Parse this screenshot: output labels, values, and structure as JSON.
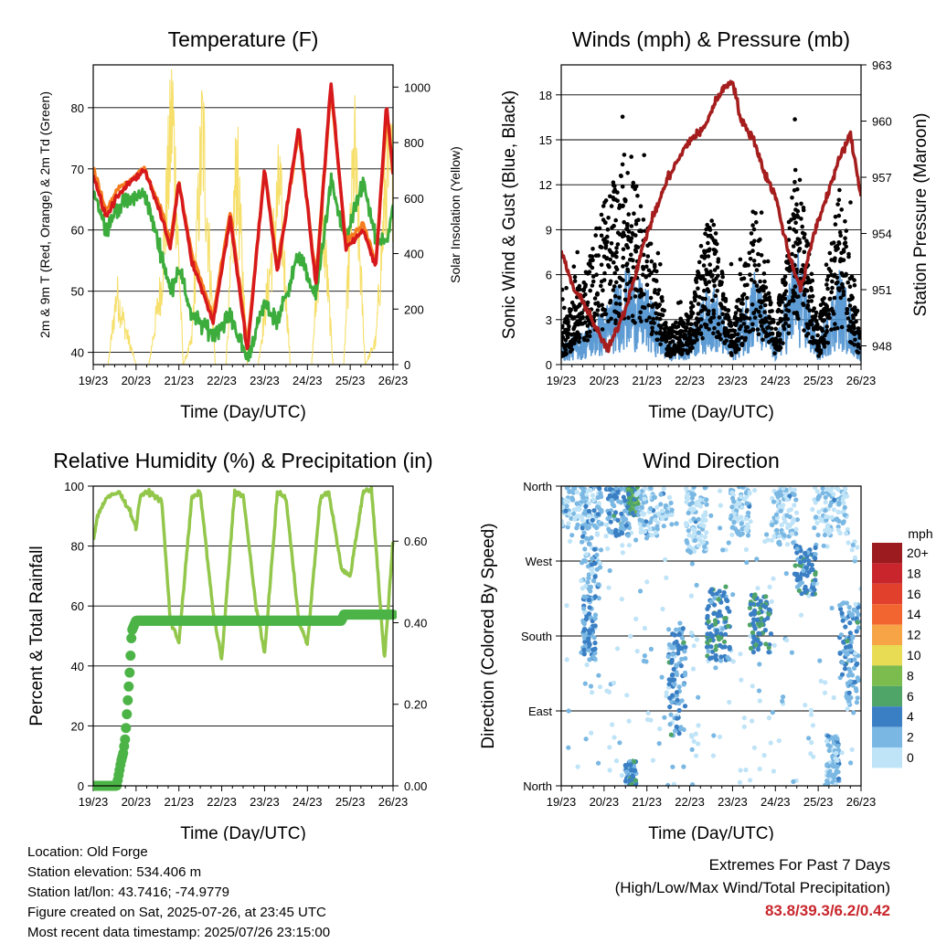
{
  "time_ticks": [
    "19/23",
    "20/23",
    "21/23",
    "22/23",
    "23/23",
    "24/23",
    "25/23",
    "26/23"
  ],
  "colors": {
    "temp2m": "#d7191c",
    "temp9m": "#f57c1f",
    "dew": "#3cac3c",
    "solar": "#f5dc5a",
    "wind": "#4a90cf",
    "gust": "#000000",
    "pressure": "#a51d1d",
    "rh": "#93c74b",
    "precip": "#4cb447"
  },
  "chart_data": [
    {
      "id": "temperature",
      "type": "line",
      "title": "Temperature (F)",
      "xlabel": "Time (Day/UTC)",
      "ylabel": "2m & 9m T (Red, Orange) & 2m Td (Green)",
      "ylabel_right": "Solar Insolation (Yellow)",
      "ylim": [
        38,
        87
      ],
      "yticks": [
        40,
        50,
        60,
        70,
        80
      ],
      "ylim_right": [
        0,
        1080
      ],
      "yticks_right": [
        0,
        200,
        400,
        600,
        800,
        1000
      ],
      "series": [
        {
          "key": "temp2m",
          "x": [
            0,
            0.3,
            0.6,
            1.2,
            1.6,
            1.8,
            2.0,
            2.3,
            2.8,
            3.2,
            3.6,
            4.0,
            4.3,
            4.8,
            5.2,
            5.55,
            5.9,
            6.3,
            6.6,
            6.85,
            7.0
          ],
          "y": [
            69,
            62,
            66,
            70,
            62,
            57,
            68,
            55,
            45,
            62,
            40,
            70,
            53,
            77,
            51,
            84,
            57,
            60,
            54,
            81,
            69
          ]
        },
        {
          "key": "temp9m",
          "x": [
            0,
            0.3,
            0.6,
            1.2,
            1.6,
            1.8,
            2.0,
            2.3,
            2.8,
            3.2,
            3.6,
            4.0,
            4.3,
            4.8,
            5.2,
            5.55,
            5.9,
            6.3,
            6.6,
            6.85,
            7.0
          ],
          "y": [
            70,
            63,
            67,
            70,
            63,
            58,
            68,
            56,
            46,
            63,
            41,
            70,
            54,
            76,
            52,
            83,
            58,
            61,
            55,
            79,
            70
          ]
        },
        {
          "key": "dew",
          "x": [
            0,
            0.3,
            0.6,
            1.2,
            1.6,
            1.8,
            2.0,
            2.3,
            2.8,
            3.2,
            3.6,
            4.0,
            4.3,
            4.8,
            5.2,
            5.55,
            5.9,
            6.3,
            6.6,
            6.85,
            7.0
          ],
          "y": [
            67,
            60,
            64,
            66,
            56,
            50,
            54,
            46,
            43,
            46,
            39,
            48,
            45,
            56,
            49,
            68,
            58,
            68,
            58,
            58,
            64
          ]
        },
        {
          "key": "solar",
          "x": [
            0.2,
            0.35,
            0.55,
            0.75,
            1.0,
            1.3,
            1.6,
            1.85,
            2.1,
            2.3,
            2.55,
            2.85,
            3.1,
            3.35,
            3.6,
            3.85,
            4.1,
            4.35,
            4.6,
            4.85,
            5.1,
            5.35,
            5.6,
            5.85,
            6.1,
            6.35,
            6.6,
            6.85
          ],
          "y": [
            0,
            0,
            300,
            150,
            0,
            0,
            350,
            1080,
            0,
            100,
            1000,
            0,
            0,
            850,
            0,
            0,
            350,
            750,
            0,
            0,
            0,
            650,
            0,
            0,
            900,
            0,
            100,
            800
          ]
        }
      ]
    },
    {
      "id": "winds",
      "type": "scatter",
      "title": "Winds (mph) & Pressure (mb)",
      "xlabel": "Time (Day/UTC)",
      "ylabel": "Sonic Wind & Gust (Blue, Black)",
      "ylabel_right": "Station Pressure (Maroon)",
      "ylim": [
        0,
        20
      ],
      "yticks": [
        0,
        3,
        6,
        9,
        12,
        15,
        18
      ],
      "ylim_right": [
        947,
        963
      ],
      "yticks_right": [
        948,
        951,
        954,
        957,
        960,
        963
      ],
      "series": [
        {
          "key": "wind",
          "x": [
            0,
            0.5,
            1.0,
            1.5,
            2.0,
            2.5,
            3.0,
            3.5,
            4.0,
            4.5,
            5.0,
            5.5,
            6.0,
            6.5,
            7.0
          ],
          "y": [
            1,
            1.5,
            2.5,
            4.5,
            3.5,
            1,
            1.5,
            4,
            1,
            4.5,
            1,
            5.5,
            1,
            4.5,
            1
          ]
        },
        {
          "key": "gust",
          "x": [
            0,
            0.5,
            1.0,
            1.5,
            2.0,
            2.5,
            3.0,
            3.5,
            4.0,
            4.5,
            5.0,
            5.5,
            6.0,
            6.5,
            7.0
          ],
          "y": [
            2,
            5,
            9,
            12,
            8,
            2,
            3,
            9,
            2,
            9,
            2,
            12,
            2,
            10,
            2
          ]
        },
        {
          "key": "pressure",
          "x": [
            0,
            0.3,
            0.6,
            0.9,
            1.1,
            1.5,
            2.0,
            2.5,
            3.0,
            3.3,
            3.7,
            4.0,
            4.2,
            4.5,
            4.75,
            5.0,
            5.3,
            5.6,
            5.9,
            6.2,
            6.5,
            6.75,
            7.0
          ],
          "y": [
            953,
            951,
            950,
            948.5,
            947.8,
            950,
            954,
            957,
            959,
            959.5,
            961.5,
            962.2,
            960,
            959,
            957.2,
            956,
            953,
            951,
            954,
            956,
            958,
            959.3,
            956
          ]
        }
      ]
    },
    {
      "id": "humidity",
      "type": "line",
      "title": "Relative Humidity (%) & Precipitation (in)",
      "xlabel": "Time (Day/UTC)",
      "ylabel": "Percent & Total Rainfall",
      "ylim": [
        0,
        100
      ],
      "yticks": [
        0,
        20,
        40,
        60,
        80,
        100
      ],
      "ylim_right": [
        0,
        0.735
      ],
      "yticks_right": [
        "0.00",
        "0.20",
        "0.40",
        "0.60"
      ],
      "series": [
        {
          "key": "rh",
          "x": [
            0,
            0.1,
            0.3,
            0.6,
            0.85,
            1.0,
            1.1,
            1.3,
            1.6,
            1.8,
            2.0,
            2.3,
            2.5,
            2.8,
            3.0,
            3.3,
            3.5,
            3.8,
            4.0,
            4.3,
            4.5,
            4.8,
            5.0,
            5.3,
            5.5,
            5.8,
            6.0,
            6.3,
            6.5,
            6.8,
            7.0
          ],
          "y": [
            82,
            90,
            96,
            98,
            92,
            86,
            97,
            98,
            95,
            55,
            48,
            96,
            98,
            58,
            42,
            98,
            97,
            60,
            44,
            98,
            96,
            55,
            47,
            96,
            98,
            72,
            70,
            98,
            99,
            42,
            82
          ]
        },
        {
          "key": "precip",
          "x": [
            0,
            0.3,
            0.55,
            0.65,
            0.7,
            0.75,
            0.8,
            0.85,
            0.9,
            1.0,
            1.5,
            2.0,
            3.0,
            4.0,
            5.0,
            5.8,
            5.85,
            6.5,
            7.0
          ],
          "y": [
            0,
            0,
            0,
            0.06,
            0.08,
            0.12,
            0.2,
            0.28,
            0.38,
            0.405,
            0.405,
            0.405,
            0.405,
            0.405,
            0.405,
            0.405,
            0.42,
            0.42,
            0.42
          ]
        }
      ]
    },
    {
      "id": "direction",
      "type": "scatter",
      "title": "Wind Direction",
      "xlabel": "Time (Day/UTC)",
      "ylabel": "Direction (Colored By Speed)",
      "ylim": [
        0,
        360
      ],
      "yticks": [
        {
          "value": 0,
          "label": "North"
        },
        {
          "value": 90,
          "label": "East"
        },
        {
          "value": 180,
          "label": "South"
        },
        {
          "value": 270,
          "label": "West"
        },
        {
          "value": 360,
          "label": "North"
        }
      ],
      "legend": {
        "title": "mph",
        "levels": [
          {
            "label": "20+",
            "color": "#9b1b1f"
          },
          {
            "label": "18",
            "color": "#c8262c"
          },
          {
            "label": "16",
            "color": "#e0402c"
          },
          {
            "label": "14",
            "color": "#f26530"
          },
          {
            "label": "12",
            "color": "#f7a447"
          },
          {
            "label": "10",
            "color": "#e8dc55"
          },
          {
            "label": "8",
            "color": "#7cbb4e"
          },
          {
            "label": "6",
            "color": "#4fa467"
          },
          {
            "label": "4",
            "color": "#3a7fc4"
          },
          {
            "label": "2",
            "color": "#7ab8e3"
          },
          {
            "label": "0",
            "color": "#bfe3f7"
          }
        ]
      },
      "clusters": [
        {
          "x": [
            0.0,
            0.9
          ],
          "y": [
            310,
            360
          ],
          "speed": 1
        },
        {
          "x": [
            0.45,
            0.95
          ],
          "y": [
            220,
            360
          ],
          "speed": 2
        },
        {
          "x": [
            0.5,
            0.8
          ],
          "y": [
            150,
            230
          ],
          "speed": 3
        },
        {
          "x": [
            1.05,
            1.6
          ],
          "y": [
            300,
            360
          ],
          "speed": 3
        },
        {
          "x": [
            1.55,
            1.8
          ],
          "y": [
            325,
            360
          ],
          "speed": 6
        },
        {
          "x": [
            1.5,
            1.75
          ],
          "y": [
            0,
            30
          ],
          "speed": 4
        },
        {
          "x": [
            1.75,
            2.6
          ],
          "y": [
            300,
            360
          ],
          "speed": 1
        },
        {
          "x": [
            2.5,
            2.9
          ],
          "y": [
            60,
            190
          ],
          "speed": 3
        },
        {
          "x": [
            2.9,
            3.4
          ],
          "y": [
            280,
            360
          ],
          "speed": 1
        },
        {
          "x": [
            3.4,
            3.95
          ],
          "y": [
            150,
            240
          ],
          "speed": 4
        },
        {
          "x": [
            3.95,
            4.4
          ],
          "y": [
            300,
            360
          ],
          "speed": 1
        },
        {
          "x": [
            4.4,
            4.9
          ],
          "y": [
            160,
            230
          ],
          "speed": 5
        },
        {
          "x": [
            4.9,
            5.5
          ],
          "y": [
            290,
            360
          ],
          "speed": 1
        },
        {
          "x": [
            5.45,
            5.95
          ],
          "y": [
            230,
            290
          ],
          "speed": 4
        },
        {
          "x": [
            5.9,
            6.7
          ],
          "y": [
            300,
            360
          ],
          "speed": 1
        },
        {
          "x": [
            6.5,
            6.95
          ],
          "y": [
            100,
            220
          ],
          "speed": 3
        },
        {
          "x": [
            6.2,
            6.5
          ],
          "y": [
            0,
            60
          ],
          "speed": 2
        }
      ]
    }
  ],
  "info": {
    "location": "Location: Old Forge",
    "elevation": "Station elevation: 534.406 m",
    "latlon": "Station lat/lon: 43.7416; -74.9779",
    "created": "Figure created on Sat, 2025-07-26, at 23:45 UTC",
    "recent": "Most recent data timestamp: 2025/07/26 23:15:00"
  },
  "extremes": {
    "line1": "Extremes For Past 7 Days",
    "line2": "(High/Low/Max Wind/Total Precipitation)",
    "values": "83.8/39.3/6.2/0.42"
  }
}
